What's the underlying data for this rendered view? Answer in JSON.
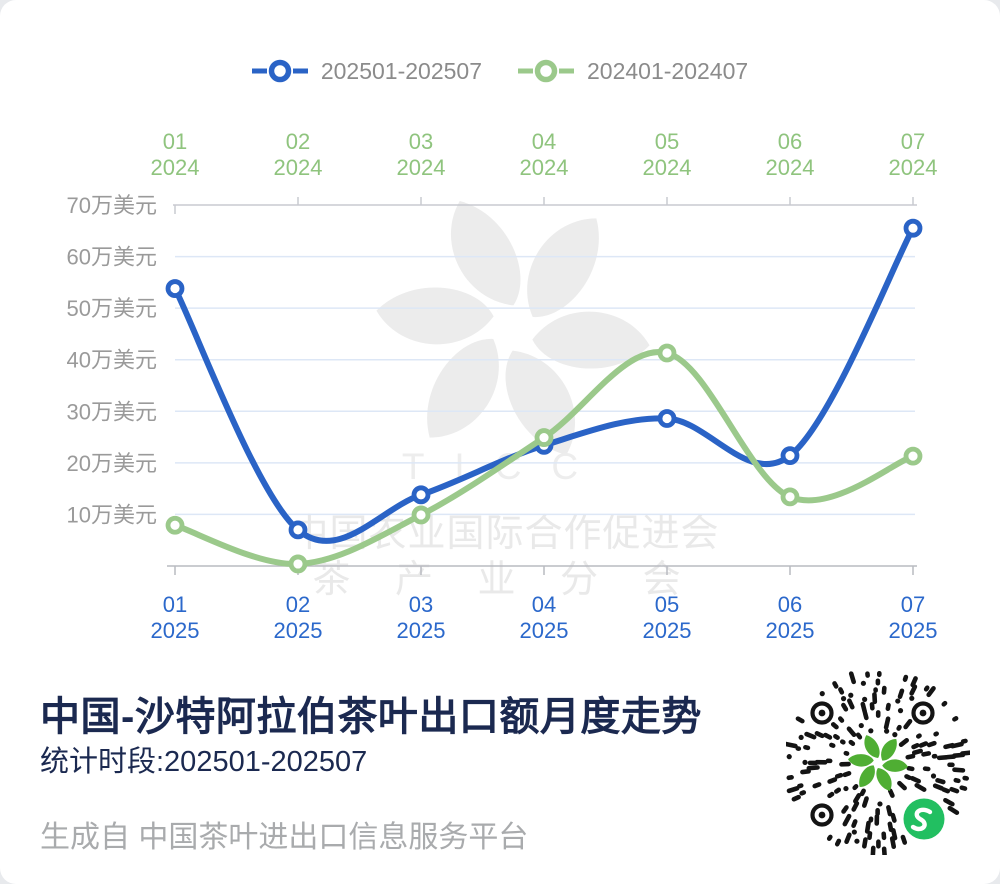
{
  "legend": {
    "items": [
      {
        "label": "202501-202507",
        "color": "#2A63C6"
      },
      {
        "label": "202401-202407",
        "color": "#9BC98B"
      }
    ]
  },
  "title": "中国-沙特阿拉伯茶叶出口额月度走势",
  "subtitle": "统计时段:202501-202507",
  "footer": "生成自 中国茶叶进出口信息服务平台",
  "watermark": {
    "acronym": "TICC",
    "line1": "中国农业国际合作促进会",
    "line2": "茶 产 业 分 会"
  },
  "colors": {
    "blue_series": "#2A63C6",
    "green_series": "#9BC98B",
    "top_axis_label": "#8FC47E",
    "bottom_axis_label": "#2B68CB",
    "y_label": "#9A9A9A",
    "grid": "#DDE7F6",
    "axis_line_top": "#C8CAD0",
    "axis_line_bottom": "#B9BBC1",
    "title_text": "#1B2950",
    "footer_text": "#A9ABAD",
    "legend_text": "#8B8B8B",
    "watermark": "#ECECEC",
    "qr_black": "#141414",
    "qr_leaf_green": "#4FAE33",
    "badge_green": "#22BF61"
  },
  "chart_data": {
    "type": "line",
    "title": "中国-沙特阿拉伯茶叶出口额月度走势",
    "months": [
      "01",
      "02",
      "03",
      "04",
      "05",
      "06",
      "07"
    ],
    "top_axis_year": "2024",
    "bottom_axis_year": "2025",
    "y_tick_values": [
      70,
      60,
      50,
      40,
      30,
      20,
      10
    ],
    "y_tick_suffix": "万美元",
    "ylim": [
      0,
      70
    ],
    "grid": true,
    "legend_position": "top",
    "series": [
      {
        "name": "202501-202507",
        "color": "#2A63C6",
        "values": [
          53.8,
          7.0,
          13.8,
          23.4,
          28.6,
          21.4,
          65.5
        ]
      },
      {
        "name": "202401-202407",
        "color": "#9BC98B",
        "values": [
          7.9,
          0.4,
          9.9,
          24.9,
          41.3,
          13.4,
          21.3
        ]
      }
    ]
  }
}
